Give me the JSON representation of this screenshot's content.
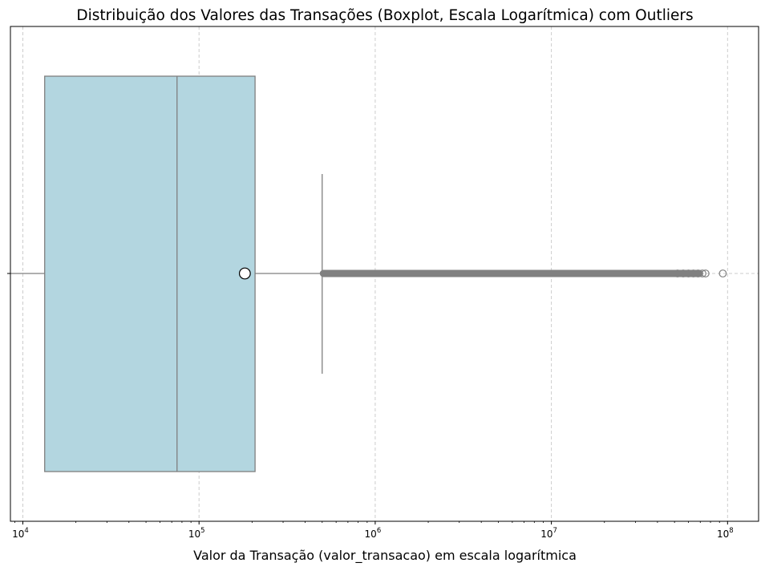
{
  "chart_data": {
    "type": "boxplot",
    "title": "Distribuição dos Valores das Transações (Boxplot, Escala Logarítmica) com Outliers",
    "xlabel": "Valor da Transação (valor_transacao) em escala logarítmica",
    "ylabel": "",
    "x_scale": "log",
    "xlim": [
      8500,
      150000000
    ],
    "grid": true,
    "x_ticks": [
      {
        "value": 10000,
        "base": "10",
        "exp": "4"
      },
      {
        "value": 100000,
        "base": "10",
        "exp": "5"
      },
      {
        "value": 1000000,
        "base": "10",
        "exp": "6"
      },
      {
        "value": 10000000,
        "base": "10",
        "exp": "7"
      },
      {
        "value": 100000000,
        "base": "10",
        "exp": "8"
      }
    ],
    "box": {
      "whisker_low": 8500,
      "q1": 13300,
      "median": 75000,
      "q3": 208000,
      "whisker_high": 500000,
      "mean": 182000
    },
    "outlier_range": [
      500000,
      75000000
    ],
    "sparse_outliers": [
      52000000,
      56000000,
      60000000,
      64000000,
      68000000,
      72000000,
      75000000,
      94000000
    ],
    "colors": {
      "box_fill": "#b3d6e0",
      "box_edge": "#7f7f7f",
      "outlier": "#808080",
      "mean_marker": "#ffffff",
      "grid": "#cccccc"
    }
  }
}
